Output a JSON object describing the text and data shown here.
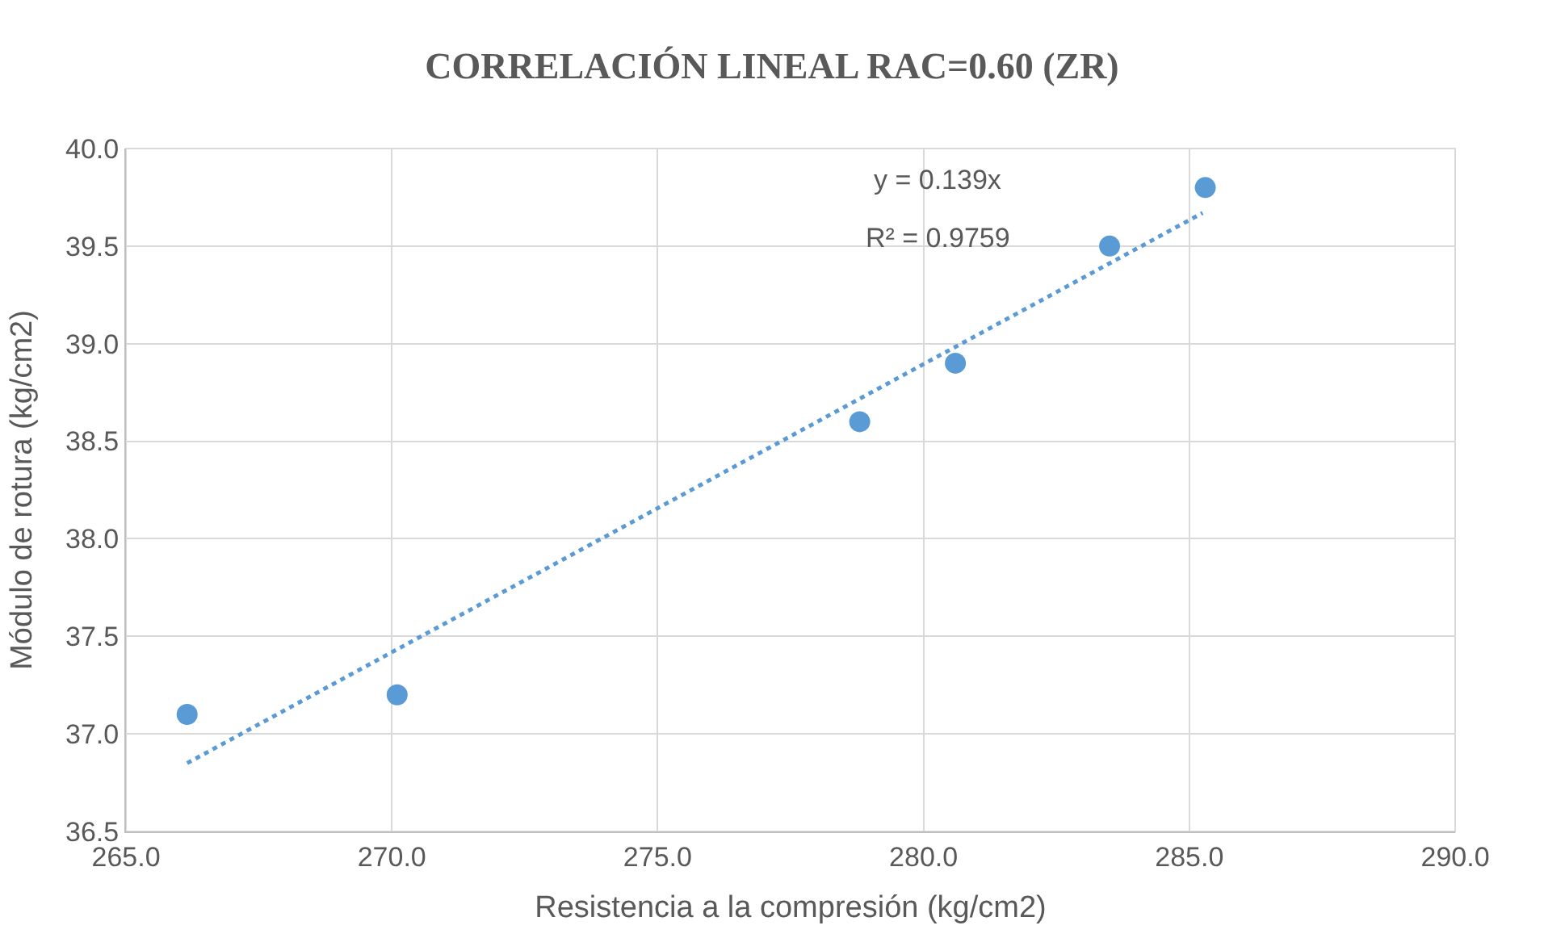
{
  "chart_data": {
    "type": "scatter",
    "title": "CORRELACIÓN LINEAL RAC=0.60 (ZR)",
    "xlabel": "Resistencia a la compresión (kg/cm2)",
    "ylabel": "Módulo de rotura (kg/cm2)",
    "x": [
      266.15,
      270.1,
      278.8,
      280.6,
      283.5,
      285.3
    ],
    "series": [
      {
        "color": "#5b9bd5",
        "values": [
          37.1,
          37.2,
          38.6,
          38.9,
          39.5,
          39.8
        ],
        "marker": "circle"
      },
      {
        "type": "line",
        "color": "#5b9bd5",
        "x": [
          266.15,
          285.25
        ],
        "values": [
          36.85,
          39.67
        ],
        "line_style": "dotted",
        "marker": "none"
      }
    ],
    "annotations": [
      "y = 0.139x",
      "R² = 0.9759"
    ],
    "xlim": [
      265,
      290
    ],
    "xticks": [
      {
        "value": 265,
        "label": "265.0"
      },
      {
        "value": 270,
        "label": "270.0"
      },
      {
        "value": 275,
        "label": "275.0"
      },
      {
        "value": 280,
        "label": "280.0"
      },
      {
        "value": 285,
        "label": "285.0"
      },
      {
        "value": 290,
        "label": "290.0"
      }
    ],
    "ylim": [
      36.5,
      40.0
    ],
    "yticks": [
      {
        "value": 36.5,
        "label": "36.5"
      },
      {
        "value": 37.0,
        "label": "37.0"
      },
      {
        "value": 37.5,
        "label": "37.5"
      },
      {
        "value": 38.0,
        "label": "38.0"
      },
      {
        "value": 38.5,
        "label": "38.5"
      },
      {
        "value": 39.0,
        "label": "39.0"
      },
      {
        "value": 39.5,
        "label": "39.5"
      },
      {
        "value": 40.0,
        "label": "40.0"
      }
    ],
    "grid": true
  }
}
